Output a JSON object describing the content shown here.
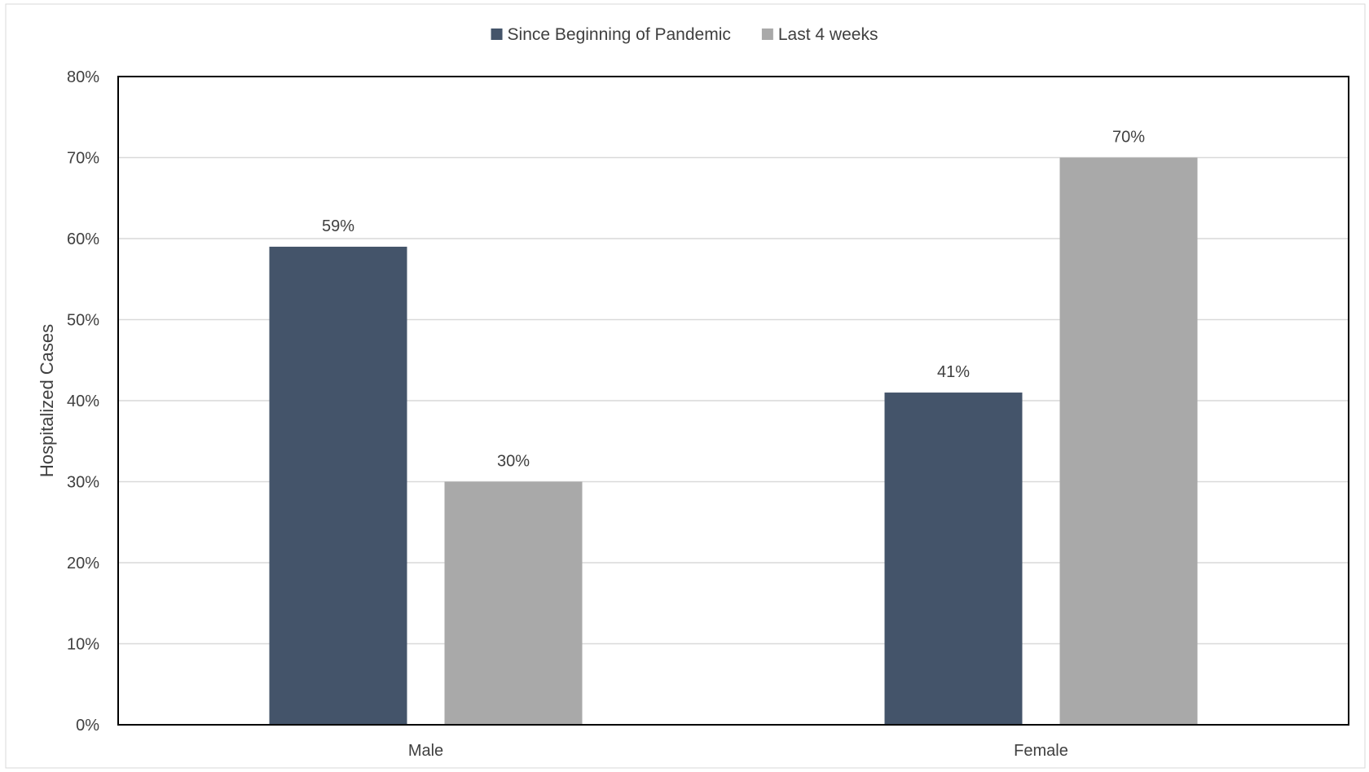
{
  "chart_data": {
    "type": "bar",
    "categories": [
      "Male",
      "Female"
    ],
    "series": [
      {
        "name": "Since Beginning of Pandemic",
        "values": [
          59,
          41
        ],
        "labels": [
          "59%",
          "41%"
        ],
        "color": "#44546a"
      },
      {
        "name": "Last 4 weeks",
        "values": [
          30,
          70
        ],
        "labels": [
          "30%",
          "70%"
        ],
        "color": "#a9a9a9"
      }
    ],
    "title": "",
    "xlabel": "",
    "ylabel": "Hospitalized Cases",
    "ylim": [
      0,
      80
    ],
    "yticks": [
      0,
      10,
      20,
      30,
      40,
      50,
      60,
      70,
      80
    ],
    "ytick_labels": [
      "0%",
      "10%",
      "20%",
      "30%",
      "40%",
      "50%",
      "60%",
      "70%",
      "80%"
    ],
    "grid": true,
    "legend_position": "top-center",
    "gridline_color": "#d9d9d9",
    "axis_color": "#000000"
  }
}
